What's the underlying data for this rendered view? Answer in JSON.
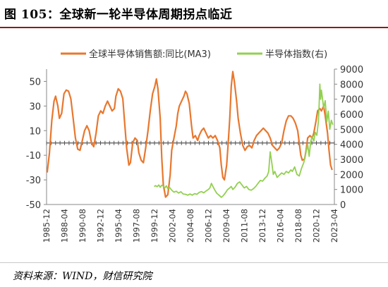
{
  "title": "图 105：全球新一轮半导体周期拐点临近",
  "source": "资料来源：WIND，财信研究院",
  "chart_data": {
    "type": "line",
    "x_tick_labels": [
      "1985-12",
      "1988-04",
      "1990-08",
      "1992-12",
      "1995-04",
      "1997-08",
      "1999-12",
      "2002-04",
      "2004-08",
      "2006-12",
      "2009-04",
      "2011-08",
      "2013-12",
      "2016-04",
      "2018-08",
      "2020-12",
      "2023-04"
    ],
    "x_range": [
      1985.92,
      2023.6
    ],
    "left_axis": {
      "ticks": [
        50,
        30,
        10,
        -10,
        -30,
        -50
      ],
      "ylim": [
        -50,
        60
      ],
      "zero_line": 0
    },
    "right_axis": {
      "ticks": [
        9000,
        8000,
        7000,
        6000,
        5000,
        4000,
        3000,
        2000,
        1000,
        0
      ],
      "ylim": [
        0,
        9000
      ]
    },
    "grid": false,
    "legend_position": "top",
    "series": [
      {
        "name": "全球半导体销售额:同比(MA3)",
        "axis": "left",
        "color": "#e8772e",
        "points": [
          [
            1986.0,
            -24
          ],
          [
            1986.3,
            -8
          ],
          [
            1986.6,
            18
          ],
          [
            1986.9,
            34
          ],
          [
            1987.1,
            38
          ],
          [
            1987.4,
            30
          ],
          [
            1987.6,
            20
          ],
          [
            1987.9,
            24
          ],
          [
            1988.2,
            40
          ],
          [
            1988.5,
            43
          ],
          [
            1988.8,
            42
          ],
          [
            1989.1,
            36
          ],
          [
            1989.4,
            20
          ],
          [
            1989.7,
            4
          ],
          [
            1990.0,
            -5
          ],
          [
            1990.3,
            -6
          ],
          [
            1990.6,
            2
          ],
          [
            1990.9,
            10
          ],
          [
            1991.2,
            14
          ],
          [
            1991.5,
            10
          ],
          [
            1991.8,
            0
          ],
          [
            1992.1,
            -3
          ],
          [
            1992.4,
            8
          ],
          [
            1992.7,
            22
          ],
          [
            1993.0,
            26
          ],
          [
            1993.3,
            24
          ],
          [
            1993.6,
            30
          ],
          [
            1993.9,
            34
          ],
          [
            1994.2,
            30
          ],
          [
            1994.5,
            26
          ],
          [
            1994.8,
            28
          ],
          [
            1995.0,
            38
          ],
          [
            1995.3,
            44
          ],
          [
            1995.6,
            42
          ],
          [
            1995.9,
            36
          ],
          [
            1996.1,
            20
          ],
          [
            1996.4,
            -4
          ],
          [
            1996.7,
            -18
          ],
          [
            1996.9,
            -16
          ],
          [
            1997.2,
            0
          ],
          [
            1997.5,
            4
          ],
          [
            1997.8,
            2
          ],
          [
            1998.0,
            -8
          ],
          [
            1998.3,
            -14
          ],
          [
            1998.6,
            -16
          ],
          [
            1998.9,
            -4
          ],
          [
            1999.2,
            10
          ],
          [
            1999.5,
            26
          ],
          [
            1999.8,
            40
          ],
          [
            2000.1,
            46
          ],
          [
            2000.3,
            52
          ],
          [
            2000.5,
            44
          ],
          [
            2000.8,
            20
          ],
          [
            2001.0,
            -12
          ],
          [
            2001.2,
            -34
          ],
          [
            2001.5,
            -44
          ],
          [
            2001.8,
            -42
          ],
          [
            2002.1,
            -26
          ],
          [
            2002.3,
            -6
          ],
          [
            2002.6,
            4
          ],
          [
            2002.9,
            14
          ],
          [
            2003.1,
            24
          ],
          [
            2003.3,
            30
          ],
          [
            2003.6,
            34
          ],
          [
            2003.9,
            38
          ],
          [
            2004.1,
            42
          ],
          [
            2004.3,
            40
          ],
          [
            2004.6,
            32
          ],
          [
            2004.9,
            14
          ],
          [
            2005.1,
            4
          ],
          [
            2005.4,
            6
          ],
          [
            2005.7,
            2
          ],
          [
            2005.9,
            6
          ],
          [
            2006.2,
            10
          ],
          [
            2006.5,
            12
          ],
          [
            2006.8,
            8
          ],
          [
            2007.1,
            4
          ],
          [
            2007.4,
            6
          ],
          [
            2007.7,
            4
          ],
          [
            2008.0,
            6
          ],
          [
            2008.3,
            2
          ],
          [
            2008.6,
            -4
          ],
          [
            2008.8,
            -18
          ],
          [
            2009.0,
            -28
          ],
          [
            2009.2,
            -30
          ],
          [
            2009.5,
            -18
          ],
          [
            2009.7,
            0
          ],
          [
            2009.9,
            20
          ],
          [
            2010.1,
            46
          ],
          [
            2010.3,
            58
          ],
          [
            2010.5,
            50
          ],
          [
            2010.8,
            34
          ],
          [
            2011.0,
            20
          ],
          [
            2011.3,
            8
          ],
          [
            2011.6,
            -2
          ],
          [
            2011.9,
            -6
          ],
          [
            2012.2,
            -3
          ],
          [
            2012.5,
            -2
          ],
          [
            2012.8,
            -4
          ],
          [
            2013.1,
            2
          ],
          [
            2013.4,
            6
          ],
          [
            2013.7,
            8
          ],
          [
            2014.0,
            10
          ],
          [
            2014.3,
            12
          ],
          [
            2014.6,
            10
          ],
          [
            2014.9,
            8
          ],
          [
            2015.2,
            4
          ],
          [
            2015.5,
            -2
          ],
          [
            2015.8,
            -4
          ],
          [
            2016.1,
            -6
          ],
          [
            2016.4,
            -4
          ],
          [
            2016.7,
            0
          ],
          [
            2017.0,
            10
          ],
          [
            2017.3,
            18
          ],
          [
            2017.6,
            22
          ],
          [
            2017.9,
            22
          ],
          [
            2018.2,
            20
          ],
          [
            2018.5,
            16
          ],
          [
            2018.8,
            10
          ],
          [
            2019.0,
            0
          ],
          [
            2019.2,
            -10
          ],
          [
            2019.4,
            -14
          ],
          [
            2019.7,
            -13
          ],
          [
            2019.9,
            -6
          ],
          [
            2020.1,
            4
          ],
          [
            2020.4,
            6
          ],
          [
            2020.7,
            4
          ],
          [
            2020.9,
            8
          ],
          [
            2021.2,
            18
          ],
          [
            2021.4,
            26
          ],
          [
            2021.7,
            28
          ],
          [
            2021.9,
            26
          ],
          [
            2022.2,
            30
          ],
          [
            2022.4,
            22
          ],
          [
            2022.7,
            8
          ],
          [
            2022.9,
            -6
          ],
          [
            2023.1,
            -18
          ],
          [
            2023.3,
            -22
          ]
        ]
      },
      {
        "name": "半导体指数(右)",
        "axis": "right",
        "color": "#92d050",
        "points": [
          [
            2000.0,
            1200
          ],
          [
            2000.2,
            1250
          ],
          [
            2000.4,
            1180
          ],
          [
            2000.6,
            1300
          ],
          [
            2000.8,
            1150
          ],
          [
            2001.0,
            1280
          ],
          [
            2001.2,
            1230
          ],
          [
            2001.4,
            1100
          ],
          [
            2001.6,
            1240
          ],
          [
            2001.8,
            1050
          ],
          [
            2002.0,
            1150
          ],
          [
            2002.3,
            950
          ],
          [
            2002.6,
            820
          ],
          [
            2002.9,
            880
          ],
          [
            2003.2,
            760
          ],
          [
            2003.5,
            850
          ],
          [
            2003.8,
            700
          ],
          [
            2004.1,
            680
          ],
          [
            2004.4,
            620
          ],
          [
            2004.7,
            700
          ],
          [
            2005.0,
            620
          ],
          [
            2005.3,
            720
          ],
          [
            2005.6,
            680
          ],
          [
            2005.9,
            800
          ],
          [
            2006.2,
            860
          ],
          [
            2006.5,
            780
          ],
          [
            2006.8,
            900
          ],
          [
            2007.1,
            1000
          ],
          [
            2007.3,
            1100
          ],
          [
            2007.5,
            1400
          ],
          [
            2007.7,
            1200
          ],
          [
            2007.9,
            1000
          ],
          [
            2008.2,
            750
          ],
          [
            2008.5,
            620
          ],
          [
            2008.8,
            480
          ],
          [
            2009.0,
            560
          ],
          [
            2009.3,
            750
          ],
          [
            2009.6,
            980
          ],
          [
            2009.9,
            1100
          ],
          [
            2010.1,
            1200
          ],
          [
            2010.3,
            1000
          ],
          [
            2010.6,
            1150
          ],
          [
            2010.9,
            1400
          ],
          [
            2011.2,
            1500
          ],
          [
            2011.5,
            1300
          ],
          [
            2011.8,
            1100
          ],
          [
            2012.1,
            1200
          ],
          [
            2012.4,
            1000
          ],
          [
            2012.7,
            950
          ],
          [
            2013.0,
            1050
          ],
          [
            2013.3,
            1200
          ],
          [
            2013.6,
            1400
          ],
          [
            2013.9,
            1600
          ],
          [
            2014.2,
            1550
          ],
          [
            2014.5,
            1750
          ],
          [
            2014.8,
            1900
          ],
          [
            2015.0,
            2200
          ],
          [
            2015.2,
            3500
          ],
          [
            2015.4,
            2800
          ],
          [
            2015.6,
            2000
          ],
          [
            2015.8,
            2200
          ],
          [
            2016.1,
            1800
          ],
          [
            2016.4,
            1950
          ],
          [
            2016.7,
            2100
          ],
          [
            2017.0,
            2000
          ],
          [
            2017.3,
            2200
          ],
          [
            2017.6,
            2100
          ],
          [
            2017.9,
            2300
          ],
          [
            2018.1,
            2200
          ],
          [
            2018.4,
            2500
          ],
          [
            2018.7,
            2000
          ],
          [
            2019.0,
            1900
          ],
          [
            2019.3,
            2400
          ],
          [
            2019.6,
            2800
          ],
          [
            2019.9,
            3500
          ],
          [
            2020.1,
            4000
          ],
          [
            2020.3,
            3200
          ],
          [
            2020.5,
            4200
          ],
          [
            2020.7,
            4500
          ],
          [
            2020.9,
            4200
          ],
          [
            2021.1,
            4800
          ],
          [
            2021.3,
            4600
          ],
          [
            2021.5,
            5500
          ],
          [
            2021.6,
            6500
          ],
          [
            2021.7,
            8000
          ],
          [
            2021.8,
            7000
          ],
          [
            2021.9,
            7600
          ],
          [
            2022.0,
            7200
          ],
          [
            2022.2,
            6400
          ],
          [
            2022.4,
            6900
          ],
          [
            2022.6,
            5500
          ],
          [
            2022.8,
            6200
          ],
          [
            2023.0,
            5000
          ],
          [
            2023.2,
            5600
          ],
          [
            2023.4,
            5300
          ]
        ]
      }
    ]
  }
}
